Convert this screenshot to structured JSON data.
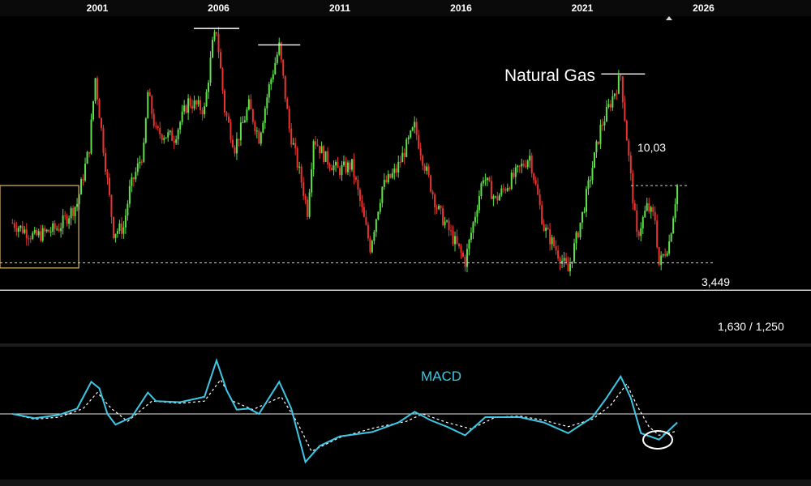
{
  "chart_data": [
    {
      "type": "candlestick",
      "title": "Natural Gas",
      "x_ticks": [
        "2001",
        "2006",
        "2011",
        "2016",
        "2021",
        "2026"
      ],
      "y_axis": "hidden",
      "ylim": [
        0.9,
        16.5
      ],
      "annotations": {
        "peak_label": "10,03",
        "current_label": "3,449",
        "support_label": "1,630 / 1,250"
      },
      "values": {
        "peak": 10.03,
        "current": 3.449,
        "support_high": 1.63,
        "support_low": 1.25
      },
      "price_path": [
        [
          "1997-07",
          2.4
        ],
        [
          "1998-06",
          2.1
        ],
        [
          "1999-06",
          2.3
        ],
        [
          "2000-03",
          2.9
        ],
        [
          "2000-09",
          5.0
        ],
        [
          "2000-12",
          9.8
        ],
        [
          "2001-04",
          5.0
        ],
        [
          "2001-09",
          2.2
        ],
        [
          "2002-02",
          2.3
        ],
        [
          "2002-05",
          3.3
        ],
        [
          "2002-12",
          4.9
        ],
        [
          "2003-02",
          8.5
        ],
        [
          "2003-06",
          5.8
        ],
        [
          "2004-03",
          5.5
        ],
        [
          "2004-10",
          7.8
        ],
        [
          "2005-06",
          7.2
        ],
        [
          "2005-10",
          13.5
        ],
        [
          "2005-12",
          15.6
        ],
        [
          "2006-04",
          7.2
        ],
        [
          "2006-09",
          5.0
        ],
        [
          "2007-04",
          7.5
        ],
        [
          "2007-09",
          5.5
        ],
        [
          "2008-02",
          9.0
        ],
        [
          "2008-07",
          13.3
        ],
        [
          "2008-12",
          6.0
        ],
        [
          "2009-06",
          3.6
        ],
        [
          "2009-09",
          2.7
        ],
        [
          "2009-12",
          5.5
        ],
        [
          "2010-06",
          4.5
        ],
        [
          "2010-12",
          4.0
        ],
        [
          "2011-07",
          4.2
        ],
        [
          "2012-04",
          1.9
        ],
        [
          "2012-10",
          3.4
        ],
        [
          "2013-05",
          4.0
        ],
        [
          "2014-02",
          6.1
        ],
        [
          "2014-06",
          4.5
        ],
        [
          "2015-01",
          2.8
        ],
        [
          "2016-03",
          1.65
        ],
        [
          "2016-12",
          3.8
        ],
        [
          "2017-06",
          3.0
        ],
        [
          "2018-11",
          4.6
        ],
        [
          "2019-06",
          2.3
        ],
        [
          "2020-06",
          1.5
        ],
        [
          "2021-01",
          2.6
        ],
        [
          "2021-10",
          6.0
        ],
        [
          "2022-08",
          10.0
        ],
        [
          "2022-12",
          4.5
        ],
        [
          "2023-04",
          2.1
        ],
        [
          "2023-09",
          2.8
        ],
        [
          "2024-01",
          2.5
        ],
        [
          "2024-03",
          1.6
        ],
        [
          "2024-08",
          2.0
        ],
        [
          "2024-12",
          3.449
        ]
      ]
    },
    {
      "type": "line",
      "title": "MACD",
      "series": [
        {
          "line_style": "solid",
          "color": "#3ec8e6",
          "values": [
            [
              "1997-07",
              0.0
            ],
            [
              "1998-06",
              -0.4
            ],
            [
              "1999-06",
              -0.1
            ],
            [
              "2000-03",
              0.5
            ],
            [
              "2000-10",
              3.0
            ],
            [
              "2001-02",
              2.4
            ],
            [
              "2001-06",
              0.0
            ],
            [
              "2001-10",
              -1.0
            ],
            [
              "2002-06",
              -0.3
            ],
            [
              "2003-02",
              2.0
            ],
            [
              "2003-06",
              1.2
            ],
            [
              "2004-06",
              1.1
            ],
            [
              "2005-06",
              1.6
            ],
            [
              "2005-12",
              5.0
            ],
            [
              "2006-05",
              2.2
            ],
            [
              "2006-10",
              0.4
            ],
            [
              "2007-04",
              0.5
            ],
            [
              "2007-09",
              0.0
            ],
            [
              "2008-07",
              3.0
            ],
            [
              "2009-01",
              0.5
            ],
            [
              "2009-08",
              -4.5
            ],
            [
              "2010-03",
              -3.0
            ],
            [
              "2011-01",
              -2.1
            ],
            [
              "2012-05",
              -1.7
            ],
            [
              "2013-06",
              -0.8
            ],
            [
              "2014-02",
              0.2
            ],
            [
              "2014-10",
              -0.6
            ],
            [
              "2015-06",
              -1.2
            ],
            [
              "2016-03",
              -2.0
            ],
            [
              "2017-01",
              -0.3
            ],
            [
              "2018-06",
              -0.3
            ],
            [
              "2019-06",
              -0.8
            ],
            [
              "2020-06",
              -1.8
            ],
            [
              "2021-06",
              -0.3
            ],
            [
              "2022-01",
              1.5
            ],
            [
              "2022-08",
              3.5
            ],
            [
              "2023-01",
              1.5
            ],
            [
              "2023-06",
              -1.8
            ],
            [
              "2024-03",
              -2.4
            ],
            [
              "2024-12",
              -0.8
            ]
          ]
        },
        {
          "line_style": "dashed",
          "color": "#ffffff",
          "values": [
            [
              "1997-07",
              0.0
            ],
            [
              "1998-06",
              -0.5
            ],
            [
              "1999-06",
              -0.3
            ],
            [
              "2000-06",
              0.5
            ],
            [
              "2001-01",
              2.0
            ],
            [
              "2001-08",
              0.5
            ],
            [
              "2002-04",
              -0.7
            ],
            [
              "2003-04",
              1.2
            ],
            [
              "2004-06",
              1.0
            ],
            [
              "2005-06",
              1.2
            ],
            [
              "2006-02",
              3.2
            ],
            [
              "2006-08",
              1.2
            ],
            [
              "2007-06",
              0.4
            ],
            [
              "2008-08",
              1.6
            ],
            [
              "2009-04",
              -0.8
            ],
            [
              "2009-11",
              -3.5
            ],
            [
              "2011-01",
              -2.2
            ],
            [
              "2012-06",
              -1.3
            ],
            [
              "2013-10",
              -0.7
            ],
            [
              "2014-06",
              0.0
            ],
            [
              "2015-06",
              -0.8
            ],
            [
              "2016-06",
              -1.4
            ],
            [
              "2017-06",
              -0.3
            ],
            [
              "2018-06",
              -0.2
            ],
            [
              "2019-06",
              -0.6
            ],
            [
              "2020-06",
              -1.2
            ],
            [
              "2021-06",
              -0.5
            ],
            [
              "2022-03",
              0.8
            ],
            [
              "2022-11",
              2.8
            ],
            [
              "2023-04",
              0.8
            ],
            [
              "2023-10",
              -1.2
            ],
            [
              "2024-03",
              -2.0
            ],
            [
              "2024-12",
              -1.6
            ]
          ]
        }
      ]
    }
  ],
  "colors": {
    "background": "#000000",
    "up": "#5ee04a",
    "down": "#e8342e",
    "macd": "#3ec8e6",
    "box": "#d9b86a",
    "text": "#ffffff"
  }
}
